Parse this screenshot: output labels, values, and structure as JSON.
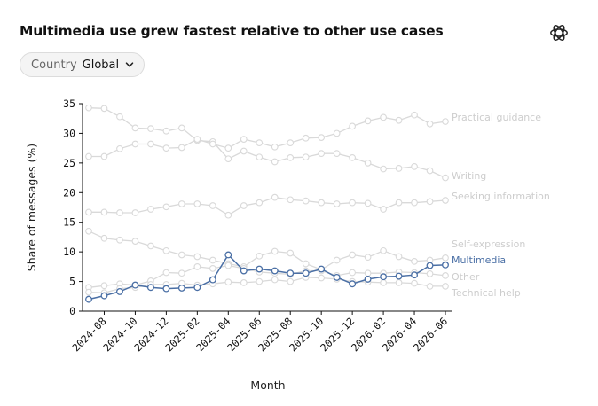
{
  "header": {
    "title": "Multimedia use grew fastest relative to other use cases",
    "logo_icon": "openai-logo-icon"
  },
  "filter": {
    "label": "Country",
    "value": "Global",
    "icon": "chevron-down-icon"
  },
  "colors": {
    "highlight": "#4a6fa5",
    "muted_line": "#d9d9d9",
    "muted_label": "#cdcdcd"
  },
  "chart_data": {
    "type": "line",
    "xlabel": "Month",
    "ylabel": "Share of messages (%)",
    "ylim": [
      0,
      35
    ],
    "yticks": [
      0,
      5,
      10,
      15,
      20,
      25,
      30,
      35
    ],
    "x": [
      "2024-07",
      "2024-08",
      "2024-09",
      "2024-10",
      "2024-11",
      "2024-12",
      "2025-01",
      "2025-02",
      "2025-03",
      "2025-04",
      "2025-05",
      "2025-06",
      "2025-07",
      "2025-08",
      "2025-09",
      "2025-10",
      "2025-11",
      "2025-12",
      "2026-01",
      "2026-02",
      "2026-03",
      "2026-04",
      "2026-05",
      "2026-06"
    ],
    "xticks": [
      "2024-08",
      "2024-10",
      "2024-12",
      "2025-02",
      "2025-04",
      "2025-06",
      "2025-08",
      "2025-10",
      "2025-12",
      "2026-02",
      "2026-04",
      "2026-06"
    ],
    "highlight_series": "Multimedia",
    "series": [
      {
        "name": "Practical guidance",
        "values": [
          34.3,
          34.2,
          32.8,
          30.9,
          30.8,
          30.4,
          30.9,
          28.8,
          28.6,
          25.7,
          27.0,
          26.0,
          25.2,
          25.9,
          26.0,
          26.6,
          26.6,
          25.9,
          25.0,
          24.0,
          24.1,
          24.4,
          23.7,
          22.5
        ]
      },
      {
        "name": "Writing",
        "values": [
          26.1,
          26.1,
          27.4,
          28.2,
          28.2,
          27.5,
          27.6,
          29.0,
          28.2,
          27.5,
          29.0,
          28.4,
          27.7,
          28.4,
          29.2,
          29.3,
          30.0,
          31.2,
          32.1,
          32.7,
          32.2,
          33.1,
          31.6,
          32.0
        ]
      },
      {
        "name": "Seeking information",
        "values": [
          16.7,
          16.7,
          16.6,
          16.6,
          17.2,
          17.6,
          18.1,
          18.1,
          17.8,
          16.2,
          17.8,
          18.3,
          19.2,
          18.8,
          18.6,
          18.3,
          18.1,
          18.3,
          18.2,
          17.2,
          18.3,
          18.3,
          18.5,
          18.7
        ]
      },
      {
        "name": "Self-expression",
        "values": [
          13.5,
          12.3,
          12.0,
          11.8,
          11.0,
          10.2,
          9.5,
          9.2,
          8.6,
          8.0,
          7.5,
          9.3,
          10.1,
          9.8,
          8.0,
          7.0,
          8.6,
          9.5,
          9.1,
          10.2,
          9.2,
          8.4,
          8.6,
          9.0
        ]
      },
      {
        "name": "Other",
        "values": [
          4.0,
          4.3,
          4.6,
          4.4,
          5.1,
          6.5,
          6.4,
          7.5,
          7.2,
          7.7,
          7.2,
          6.6,
          6.4,
          6.2,
          6.8,
          6.8,
          6.0,
          6.5,
          6.4,
          6.4,
          6.6,
          6.5,
          6.3,
          6.0
        ]
      },
      {
        "name": "Technical help",
        "values": [
          3.2,
          3.1,
          3.8,
          4.0,
          4.5,
          4.5,
          4.7,
          4.4,
          4.6,
          4.9,
          4.8,
          5.0,
          5.3,
          5.0,
          5.7,
          5.6,
          5.4,
          5.0,
          4.9,
          4.8,
          4.8,
          4.7,
          4.2,
          4.2
        ]
      },
      {
        "name": "Multimedia",
        "values": [
          2.0,
          2.6,
          3.3,
          4.4,
          4.0,
          3.8,
          3.9,
          4.0,
          5.3,
          9.5,
          6.8,
          7.1,
          6.8,
          6.4,
          6.4,
          7.1,
          5.7,
          4.6,
          5.4,
          5.8,
          5.9,
          6.1,
          7.7,
          7.8
        ]
      }
    ]
  }
}
